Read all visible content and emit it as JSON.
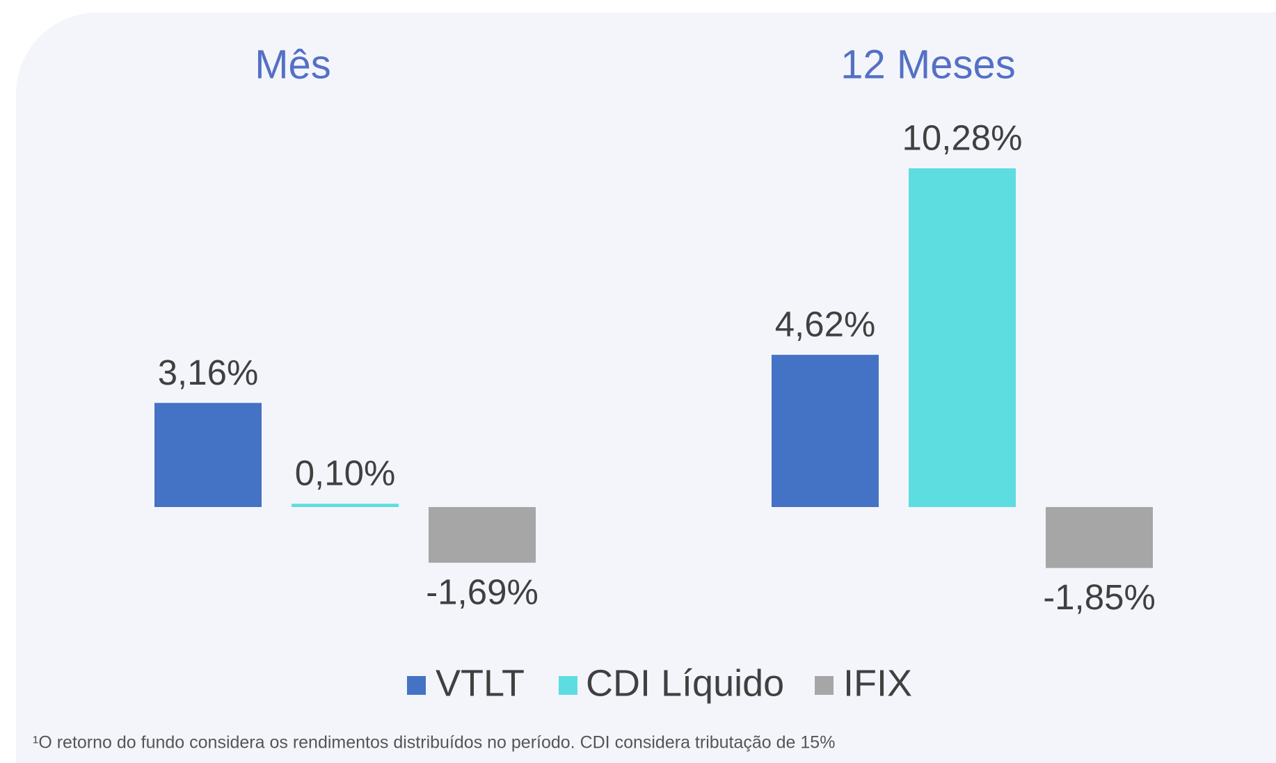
{
  "chart_data": {
    "type": "bar",
    "categories": [
      "Mês",
      "12 Meses"
    ],
    "series": [
      {
        "name": "VTLT",
        "color": "#4472c4",
        "values": [
          3.16,
          4.62
        ],
        "value_labels": [
          "3,16%",
          "4,62%"
        ]
      },
      {
        "name": "CDI Líquido",
        "color": "#5ddde0",
        "values": [
          0.1,
          10.28
        ],
        "value_labels": [
          "0,10%",
          "10,28%"
        ]
      },
      {
        "name": "IFIX",
        "color": "#a6a6a6",
        "values": [
          -1.69,
          -1.85
        ],
        "value_labels": [
          "-1,69%",
          "-1,85%"
        ]
      }
    ],
    "footnote": "¹O retorno do fundo considera os rendimentos distribuídos no período. CDI considera tributação de 15%"
  }
}
